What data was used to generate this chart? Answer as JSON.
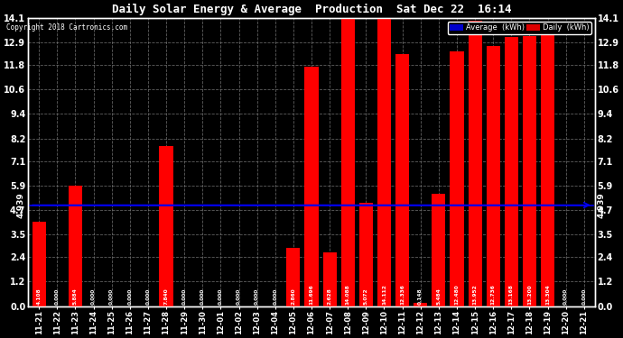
{
  "title": "Daily Solar Energy & Average  Production  Sat Dec 22  16:14",
  "copyright": "Copyright 2018 Cartronics.com",
  "categories": [
    "11-21",
    "11-22",
    "11-23",
    "11-24",
    "11-25",
    "11-26",
    "11-27",
    "11-28",
    "11-29",
    "11-30",
    "12-01",
    "12-02",
    "12-03",
    "12-04",
    "12-05",
    "12-06",
    "12-07",
    "12-08",
    "12-09",
    "12-10",
    "12-11",
    "12-12",
    "12-13",
    "12-14",
    "12-15",
    "12-16",
    "12-17",
    "12-18",
    "12-19",
    "12-20",
    "12-21"
  ],
  "values": [
    4.108,
    0.0,
    5.884,
    0.0,
    0.0,
    0.0,
    0.0,
    7.84,
    0.0,
    0.0,
    0.0,
    0.0,
    0.0,
    0.0,
    2.86,
    11.696,
    2.628,
    14.088,
    5.072,
    14.112,
    12.336,
    0.148,
    5.484,
    12.48,
    13.952,
    12.736,
    13.168,
    13.2,
    13.304,
    0.0,
    0.0
  ],
  "average_line": 4.939,
  "bar_color": "#FF0000",
  "avg_line_color": "#0000EE",
  "bg_color": "#000000",
  "plot_bg_color": "#000000",
  "text_color": "#FFFFFF",
  "grid_color": "#777777",
  "ylim": [
    0.0,
    14.1
  ],
  "yticks": [
    0.0,
    1.2,
    2.4,
    3.5,
    4.7,
    5.9,
    7.1,
    8.2,
    9.4,
    10.6,
    11.8,
    12.9,
    14.1
  ],
  "avg_label": "Average  (kWh)",
  "daily_label": "Daily  (kWh)",
  "avg_bg_color": "#0000CC",
  "daily_bg_color": "#DD0000",
  "figsize": [
    6.9,
    3.75
  ],
  "dpi": 100
}
